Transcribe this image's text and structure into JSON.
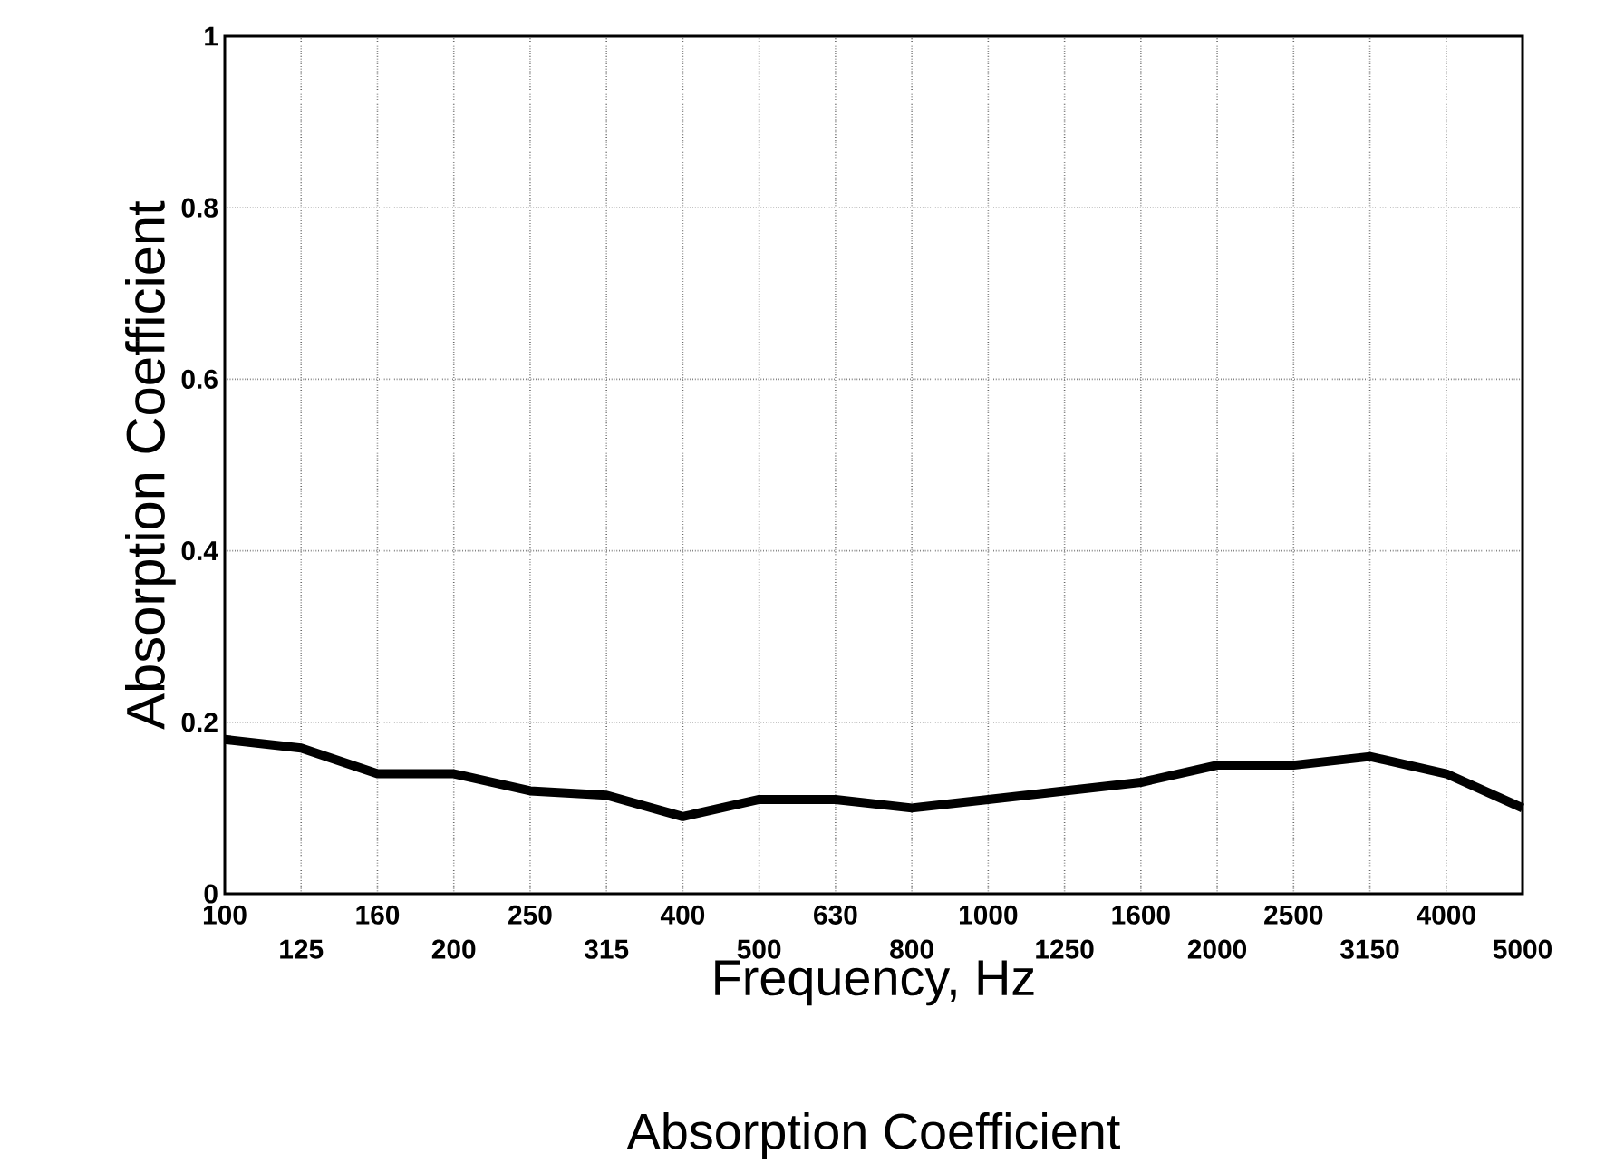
{
  "chart_data": {
    "type": "line",
    "xlabel": "Frequency, Hz",
    "ylabel": "Absorption Coefficient",
    "annotations": [
      "Absorption Coefficient"
    ],
    "categories": [
      "100",
      "125",
      "160",
      "200",
      "250",
      "315",
      "400",
      "500",
      "630",
      "800",
      "1000",
      "1250",
      "1600",
      "2000",
      "2500",
      "3150",
      "4000",
      "5000"
    ],
    "values": [
      0.18,
      0.17,
      0.14,
      0.14,
      0.12,
      0.115,
      0.09,
      0.11,
      0.11,
      0.1,
      0.11,
      0.12,
      0.13,
      0.15,
      0.15,
      0.16,
      0.14,
      0.1
    ],
    "color": "#000000",
    "line_style": "solid",
    "ylim": [
      0,
      1
    ],
    "yticks": [
      0,
      0.2,
      0.4,
      0.6,
      0.8,
      1
    ],
    "grid": true
  }
}
